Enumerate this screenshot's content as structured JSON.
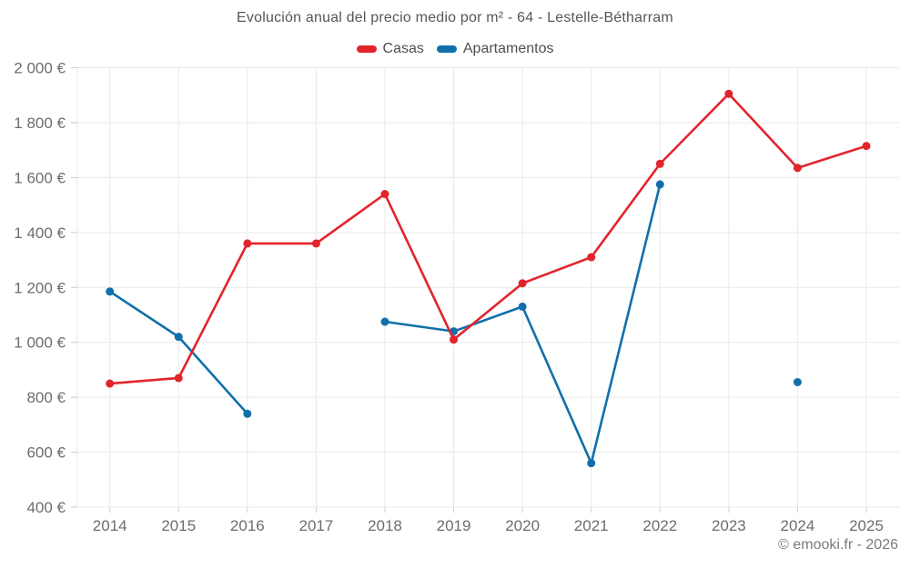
{
  "page": {
    "title": "Evolución anual del precio medio por m² - 64 - Lestelle-Bétharram",
    "copyright": "© emooki.fr - 2026"
  },
  "colors": {
    "casas": "#e2242c",
    "apartamentos": "#1170aa",
    "grid": "#e9e9e9",
    "tick": "#cccccc",
    "axis_text": "#6d6d6d",
    "title_text": "#575757",
    "copyright_text": "#7b7b7b"
  },
  "chart_data": {
    "type": "line",
    "title": "Evolución anual del precio medio por m² - 64 - Lestelle-Bétharram",
    "categories": [
      "2014",
      "2015",
      "2016",
      "2017",
      "2018",
      "2019",
      "2020",
      "2021",
      "2022",
      "2023",
      "2024",
      "2025"
    ],
    "series": [
      {
        "name": "Casas",
        "color": "#e2242c",
        "values": [
          850,
          870,
          1360,
          1360,
          1540,
          1010,
          1215,
          1310,
          1650,
          1905,
          1635,
          1715
        ]
      },
      {
        "name": "Apartamentos",
        "color": "#1170aa",
        "values": [
          1185,
          1020,
          740,
          null,
          1075,
          1040,
          1130,
          560,
          1575,
          null,
          855,
          null
        ]
      }
    ],
    "xlabel": "",
    "ylabel": "",
    "ylim": [
      400,
      2000
    ],
    "ytick_values": [
      400,
      600,
      800,
      1000,
      1200,
      1400,
      1600,
      1800,
      2000
    ],
    "ytick_labels": [
      "400 €",
      "600 €",
      "800 €",
      "1 000 €",
      "1 200 €",
      "1 400 €",
      "1 600 €",
      "1 800 €",
      "2 000 €"
    ],
    "unit": "€",
    "grid": true,
    "legend_position": "top",
    "marker": "circle"
  }
}
